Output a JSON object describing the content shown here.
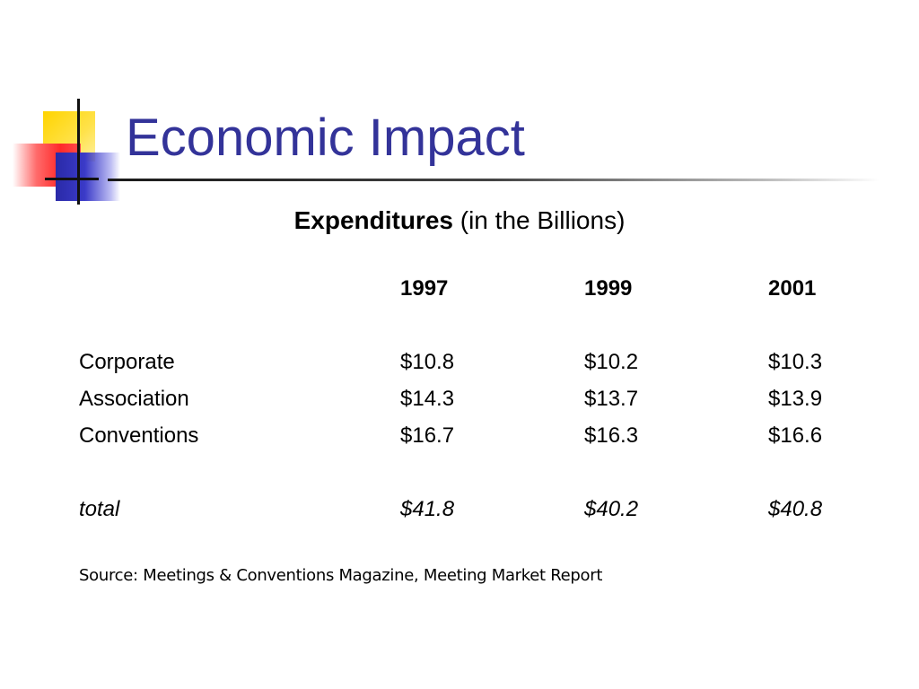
{
  "title": "Economic Impact",
  "subtitle": {
    "bold": "Expenditures",
    "rest": " (in the Billions)"
  },
  "table": {
    "columns": [
      "1997",
      "1999",
      "2001"
    ],
    "rows": [
      {
        "label": "Corporate",
        "values": [
          "$10.8",
          "$10.2",
          "$10.3"
        ]
      },
      {
        "label": "Association",
        "values": [
          "$14.3",
          "$13.7",
          "$13.9"
        ]
      },
      {
        "label": "Conventions",
        "values": [
          "$16.7",
          "$16.3",
          "$16.6"
        ]
      }
    ],
    "total": {
      "label": "total",
      "values": [
        "$41.8",
        "$40.2",
        "$40.8"
      ]
    }
  },
  "source": "Source: Meetings & Conventions Magazine, Meeting Market Report",
  "colors": {
    "title": "#333399",
    "accent_yellow": "#ffd400",
    "accent_red": "#ff2a2a",
    "accent_blue": "#2a2aa8"
  }
}
